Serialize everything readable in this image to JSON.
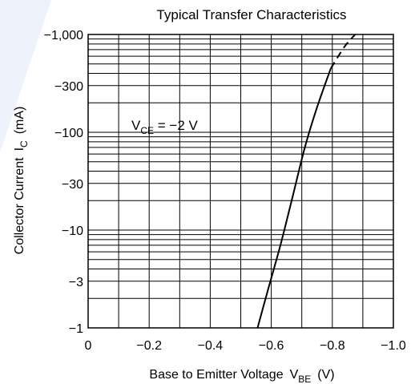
{
  "chart_data": {
    "type": "line",
    "title": "Typical Transfer Characteristics",
    "xlabel": "Base to Emitter Voltage",
    "xlabel_symbol": "V",
    "xlabel_symbol_sub": "BE",
    "xlabel_unit": "(V)",
    "ylabel": "Collector Current",
    "ylabel_symbol": "I",
    "ylabel_symbol_sub": "C",
    "ylabel_unit": "(mA)",
    "x_scale": "linear",
    "y_scale": "log",
    "xlim": [
      0,
      -1.0
    ],
    "ylim": [
      -1,
      -1000
    ],
    "x_ticks": [
      0,
      -0.2,
      -0.4,
      -0.6,
      -0.8,
      -1.0
    ],
    "x_tick_labels": [
      "0",
      "−0.2",
      "−0.4",
      "−0.6",
      "−0.8",
      "−1.0"
    ],
    "y_ticks": [
      -1,
      -3,
      -10,
      -30,
      -100,
      -300,
      -1000
    ],
    "y_tick_labels": [
      "−1",
      "−3",
      "−10",
      "−30",
      "−100",
      "−300",
      "−1,000"
    ],
    "grid": true,
    "annotation": {
      "symbol": "V",
      "sub": "CE",
      "text": " = −2 V"
    },
    "series": [
      {
        "style": "solid",
        "points": [
          {
            "x": -0.555,
            "y": -1
          },
          {
            "x": -0.59,
            "y": -2.5
          },
          {
            "x": -0.63,
            "y": -7
          },
          {
            "x": -0.67,
            "y": -22
          },
          {
            "x": -0.71,
            "y": -70
          },
          {
            "x": -0.75,
            "y": -180
          },
          {
            "x": -0.795,
            "y": -450
          }
        ]
      },
      {
        "style": "dashed",
        "points": [
          {
            "x": -0.795,
            "y": -450
          },
          {
            "x": -0.84,
            "y": -750
          },
          {
            "x": -0.875,
            "y": -1000
          }
        ]
      }
    ]
  }
}
